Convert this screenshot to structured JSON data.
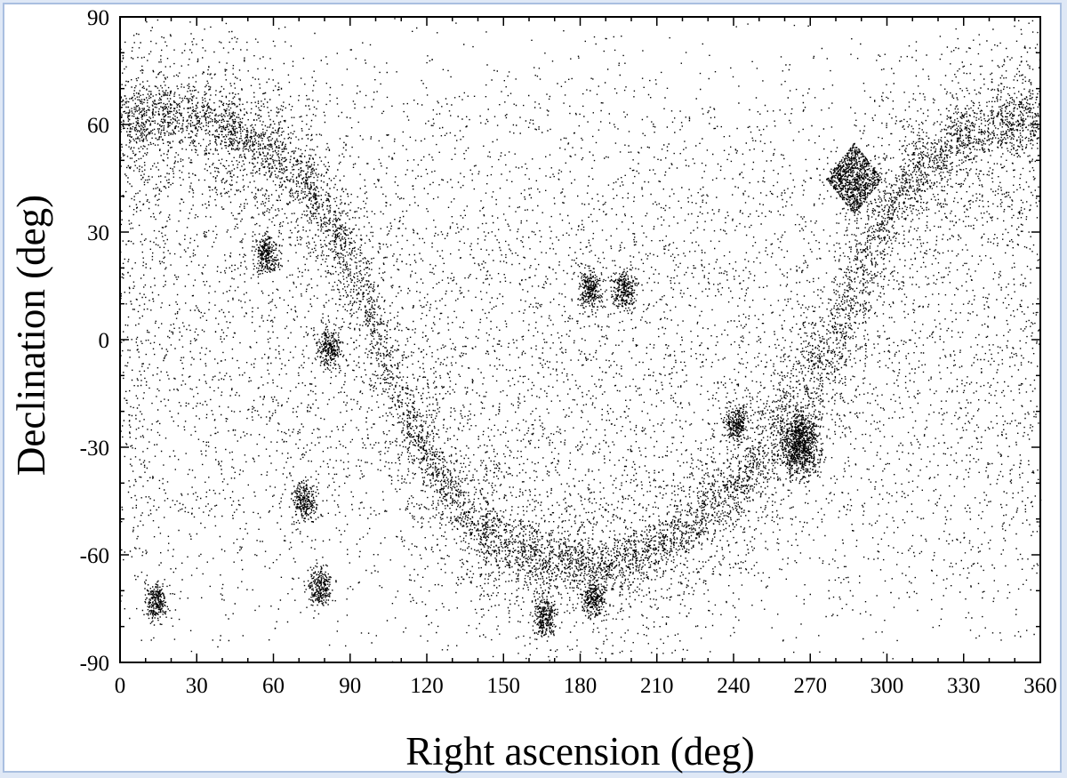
{
  "chart_data": {
    "type": "scatter",
    "xlabel": "Right ascension (deg)",
    "ylabel": "Declination (deg)",
    "xlim": [
      0,
      360
    ],
    "ylim": [
      -90,
      90
    ],
    "x_ticks": [
      0,
      30,
      60,
      90,
      120,
      150,
      180,
      210,
      240,
      270,
      300,
      330,
      360
    ],
    "y_ticks": [
      -90,
      -60,
      -30,
      0,
      30,
      60,
      90
    ],
    "x_minor_step": 10,
    "y_minor_step": 10,
    "marker": "dot",
    "marker_color": "#000000",
    "grid": false,
    "features": {
      "background_density": "uniform sparse scatter of points across the whole sky",
      "dense_band_path": [
        [
          0,
          62
        ],
        [
          20,
          63
        ],
        [
          40,
          60
        ],
        [
          60,
          52
        ],
        [
          75,
          42
        ],
        [
          90,
          22
        ],
        [
          100,
          2
        ],
        [
          110,
          -18
        ],
        [
          125,
          -38
        ],
        [
          145,
          -55
        ],
        [
          165,
          -61
        ],
        [
          185,
          -63
        ],
        [
          205,
          -60
        ],
        [
          225,
          -50
        ],
        [
          245,
          -37
        ],
        [
          260,
          -22
        ],
        [
          275,
          -5
        ],
        [
          290,
          20
        ],
        [
          305,
          42
        ],
        [
          325,
          56
        ],
        [
          345,
          61
        ],
        [
          360,
          62
        ]
      ],
      "clusters": [
        {
          "ra": 287,
          "dec": 45,
          "shape": "diamond"
        },
        {
          "ra": 266,
          "dec": -29
        },
        {
          "ra": 241,
          "dec": -23
        },
        {
          "ra": 82,
          "dec": -2
        },
        {
          "ra": 78,
          "dec": -69
        },
        {
          "ra": 14,
          "dec": -73
        },
        {
          "ra": 184,
          "dec": 14
        },
        {
          "ra": 197,
          "dec": 14
        },
        {
          "ra": 166,
          "dec": -77
        },
        {
          "ra": 185,
          "dec": -72
        },
        {
          "ra": 57,
          "dec": 24
        },
        {
          "ra": 72,
          "dec": -45
        }
      ]
    }
  }
}
